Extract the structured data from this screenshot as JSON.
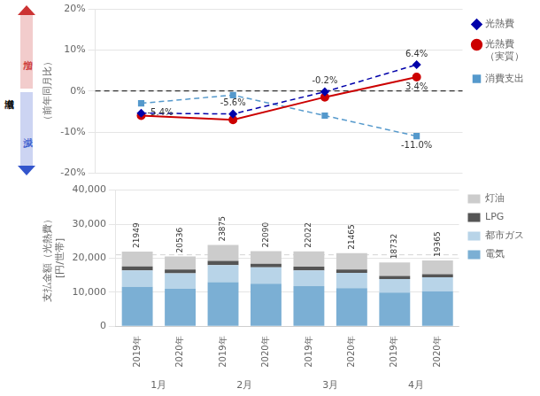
{
  "chart_data": [
    {
      "type": "line",
      "categories": [
        null,
        null,
        null,
        null
      ],
      "tick_labels": "y",
      "ylabel": "（前年同月比）",
      "ylim": [
        -20,
        20
      ],
      "yticks": [
        {
          "value": -20,
          "label": "-20%"
        },
        {
          "value": -10,
          "label": "-10%"
        },
        {
          "value": 0,
          "label": "0%"
        },
        {
          "value": 10,
          "label": "10%"
        },
        {
          "value": 20,
          "label": "20%"
        }
      ],
      "grid": true,
      "legend": "right",
      "series": [
        {
          "name": "光熱費",
          "color": "#0000aa",
          "values": [
            -5.4,
            -5.6,
            -0.2,
            6.4
          ],
          "marker": "diamond",
          "line_style": "dashed"
        },
        {
          "name": "光熱費\n（実質）",
          "color": "#cc0000",
          "values": [
            -6.0,
            -7.0,
            -1.5,
            3.4
          ],
          "marker": "circle",
          "line_style": "solid"
        },
        {
          "name": "消費支出",
          "color": "#5599cc",
          "values": [
            -3.0,
            -1.0,
            -6.0,
            -11.0
          ],
          "marker": "square",
          "line_style": "dashed"
        }
      ],
      "annotations": [
        {
          "text": "-5.4%",
          "x": 0,
          "y": -5.4
        },
        {
          "text": "-5.6%",
          "x": 1,
          "y": -5.6
        },
        {
          "text": "-0.2%",
          "x": 2,
          "y": -0.2
        },
        {
          "text": "6.4%",
          "x": 3,
          "y": 6.4
        },
        {
          "text": "3.4%",
          "x": 3,
          "y": 3.4
        },
        {
          "text": "-11.0%",
          "x": 3,
          "y": -11.0
        }
      ],
      "hlines": [
        {
          "value": 0,
          "color": "black",
          "line_style": "dashed"
        }
      ],
      "side_arrow": {
        "label": "増減率",
        "up": {
          "text": "増加",
          "color": "#cc3333"
        },
        "down": {
          "text": "減少",
          "color": "#3355cc"
        }
      }
    },
    {
      "type": "bar",
      "stacked": true,
      "categories": [
        "2019年",
        "2020年",
        "2019年",
        "2020年",
        "2019年",
        "2020年",
        "2019年",
        "2020年"
      ],
      "category_groups": [
        "1月",
        "2月",
        "3月",
        "4月"
      ],
      "ylabel": "支払金額（光熱費）\n[円/世帯]",
      "ylim": [
        0,
        40000
      ],
      "yticks": [
        0,
        {
          "value": 10000,
          "label": "10,000"
        },
        {
          "value": 20000,
          "label": "20,000"
        },
        {
          "value": 30000,
          "label": "30,000"
        },
        {
          "value": 40000,
          "label": "40,000"
        }
      ],
      "grid": true,
      "legend": "right",
      "series": [
        {
          "name": "電気",
          "color": "#7bafd4",
          "values": [
            11600,
            11000,
            13000,
            12500,
            11800,
            11200,
            9900,
            10300
          ]
        },
        {
          "name": "都市ガス",
          "color": "#b8d4e8",
          "values": [
            4800,
            4600,
            5000,
            4800,
            4600,
            4500,
            4000,
            4100
          ]
        },
        {
          "name": "LPG",
          "color": "#555555",
          "values": [
            1200,
            1100,
            1200,
            1100,
            1100,
            1000,
            900,
            900
          ]
        },
        {
          "name": "灯油",
          "color": "#cccccc",
          "values": [
            4349,
            3836,
            4675,
            3690,
            4522,
            4765,
            3932,
            4065
          ]
        }
      ],
      "totals": [
        21949,
        20536,
        23875,
        22090,
        22022,
        21465,
        18732,
        19365
      ],
      "hlines": [
        {
          "value": 21000,
          "color": "lightgray",
          "line_style": "dashed"
        }
      ]
    }
  ]
}
